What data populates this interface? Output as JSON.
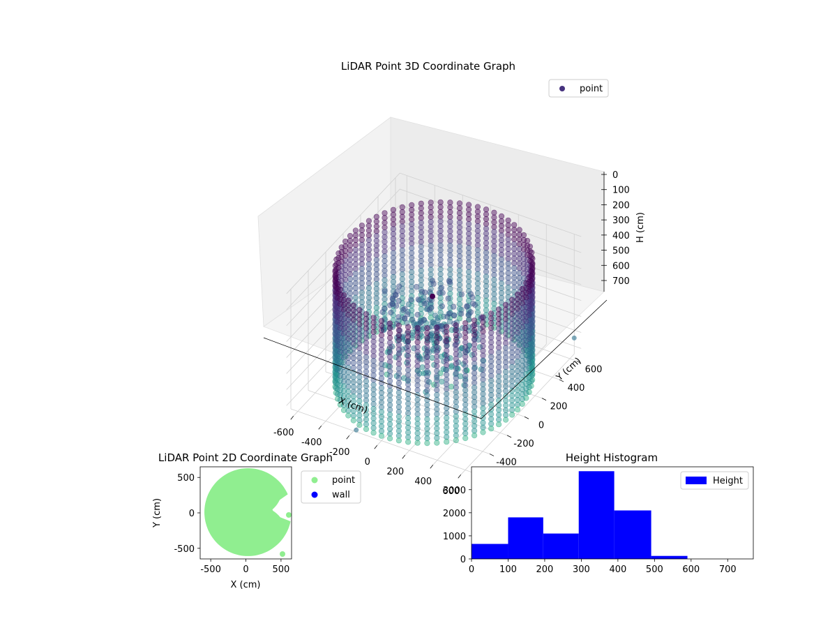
{
  "chart_data": [
    {
      "type": "scatter",
      "projection": "3d",
      "title": "LiDAR Point 3D Coordinate Graph",
      "xlabel": "X (cm)",
      "ylabel": "Y (cm)",
      "zlabel": "H (cm)",
      "xticks": [
        -600,
        -400,
        -200,
        0,
        200,
        400,
        600
      ],
      "yticks": [
        -600,
        -400,
        -200,
        0,
        200,
        400,
        600
      ],
      "zticks": [
        0,
        100,
        200,
        300,
        400,
        500,
        600,
        700
      ],
      "xlim": [
        -650,
        650
      ],
      "ylim": [
        -650,
        650
      ],
      "zlim": [
        0,
        750
      ],
      "z_axis_inverted": true,
      "colormap": "viridis",
      "legend": {
        "entries": [
          "point"
        ],
        "placement": "top-right",
        "marker_color": "#46327e"
      },
      "series": [
        {
          "name": "point",
          "description_of_shape": "circular wall of points at radius ~600 cm stacked from H 0 to ~720 cm, plus interior cluster of points near center",
          "wall_radius": 600,
          "wall_height_range": [
            0,
            720
          ],
          "outlier_points": [
            [
              600,
              650,
              650
            ],
            [
              -150,
              -650,
              700
            ]
          ]
        }
      ],
      "grid": true
    },
    {
      "type": "scatter",
      "title": "LiDAR Point 2D Coordinate Graph",
      "xlabel": "X (cm)",
      "ylabel": "Y (cm)",
      "xticks": [
        -500,
        0,
        500
      ],
      "yticks": [
        -500,
        0,
        500
      ],
      "xlim": [
        -650,
        650
      ],
      "ylim": [
        -650,
        650
      ],
      "legend": {
        "entries": [
          "point",
          "wall"
        ],
        "placement": "outside-right"
      },
      "series": [
        {
          "name": "point",
          "color": "#90ee90",
          "shape": "filled disk radius ~620 cm with wedge notch near x 300..650, y -100..100"
        },
        {
          "name": "wall",
          "color": "#0000ff",
          "values": []
        }
      ]
    },
    {
      "type": "bar",
      "subtype": "histogram",
      "title": "Height Histogram",
      "bin_edges": [
        0,
        100,
        196,
        293,
        390,
        491,
        590
      ],
      "values": [
        650,
        1800,
        1100,
        3800,
        2100,
        130
      ],
      "xticks": [
        0,
        100,
        200,
        300,
        400,
        500,
        600,
        700
      ],
      "yticks": [
        0,
        1000,
        2000,
        3000
      ],
      "xlim": [
        0,
        770
      ],
      "ylim": [
        0,
        3990
      ],
      "color": "#0000ff",
      "legend": {
        "entries": [
          "Height"
        ],
        "placement": "top-right"
      }
    }
  ]
}
